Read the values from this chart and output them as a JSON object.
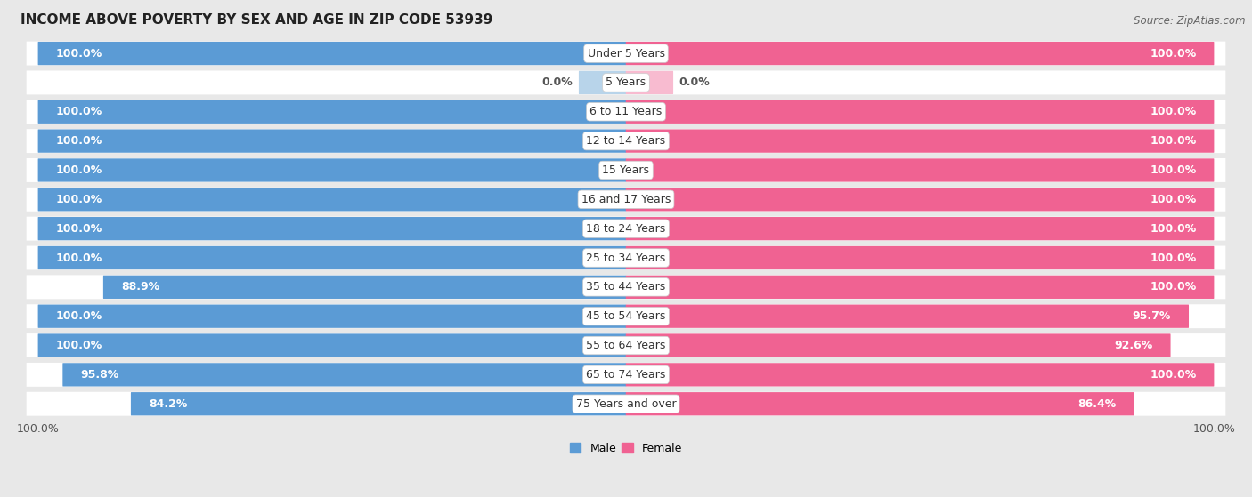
{
  "title": "INCOME ABOVE POVERTY BY SEX AND AGE IN ZIP CODE 53939",
  "source": "Source: ZipAtlas.com",
  "categories": [
    "Under 5 Years",
    "5 Years",
    "6 to 11 Years",
    "12 to 14 Years",
    "15 Years",
    "16 and 17 Years",
    "18 to 24 Years",
    "25 to 34 Years",
    "35 to 44 Years",
    "45 to 54 Years",
    "55 to 64 Years",
    "65 to 74 Years",
    "75 Years and over"
  ],
  "male_values": [
    100.0,
    0.0,
    100.0,
    100.0,
    100.0,
    100.0,
    100.0,
    100.0,
    88.9,
    100.0,
    100.0,
    95.8,
    84.2
  ],
  "female_values": [
    100.0,
    0.0,
    100.0,
    100.0,
    100.0,
    100.0,
    100.0,
    100.0,
    100.0,
    95.7,
    92.6,
    100.0,
    86.4
  ],
  "male_color": "#5b9bd5",
  "female_color": "#f06292",
  "male_color_light": "#b8d4ea",
  "female_color_light": "#f8bbd0",
  "background_color": "#e8e8e8",
  "row_color": "#ffffff",
  "label_fontsize": 9,
  "value_fontsize": 9,
  "tick_fontsize": 9,
  "title_fontsize": 11,
  "legend_male": "Male",
  "legend_female": "Female"
}
